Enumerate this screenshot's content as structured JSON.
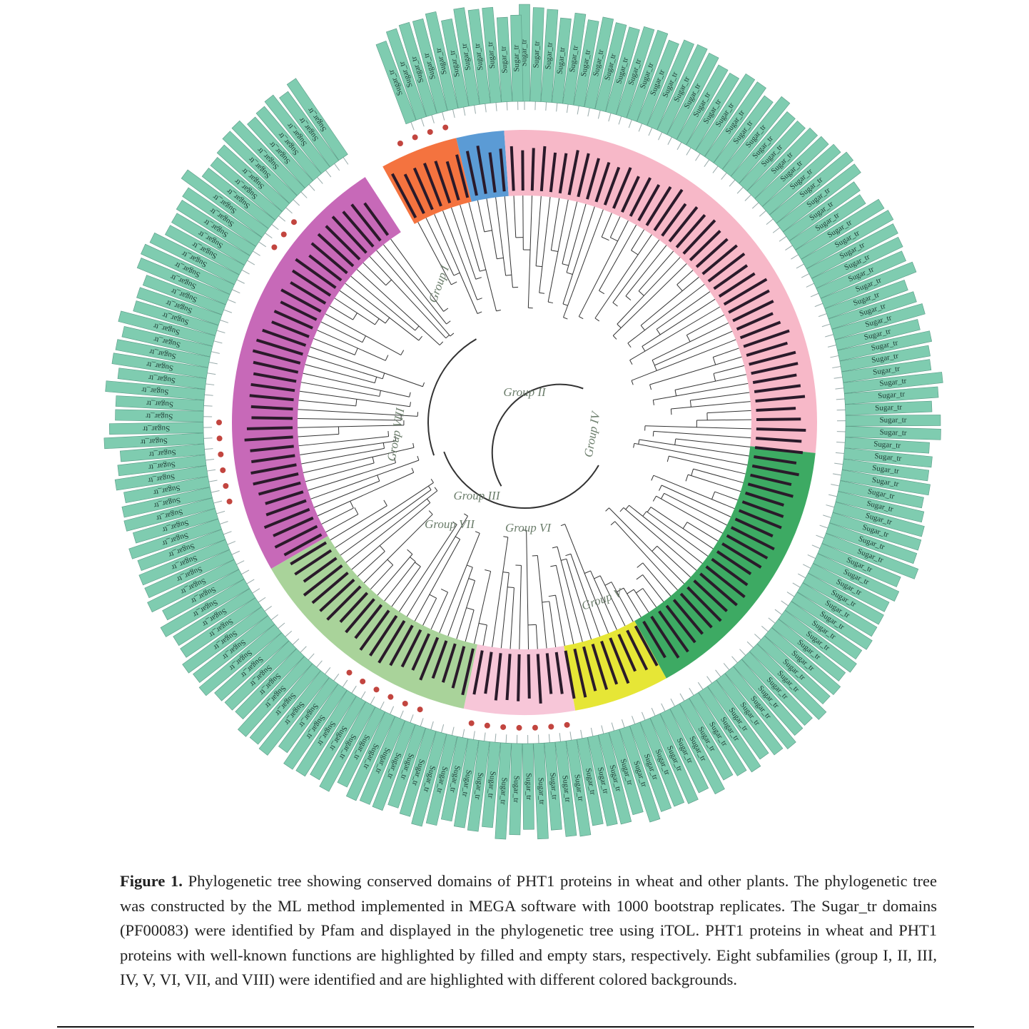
{
  "figure": {
    "domain_label": "Sugar_tr",
    "groups": [
      "Group I",
      "Group II",
      "Group III",
      "Group IV",
      "Group V",
      "Group VI",
      "Group VII",
      "Group VIII"
    ]
  },
  "caption": {
    "label": "Figure 1.",
    "text": "Phylogenetic tree showing conserved domains of PHT1 proteins in wheat and other plants. The phylogenetic tree was constructed by the ML method implemented in MEGA software with 1000 bootstrap replicates. The Sugar_tr domains (PF00083) were identified by Pfam and displayed in the phylogenetic tree using iTOL. PHT1 proteins in wheat and PHT1 proteins with well-known functions are highlighted by filled and empty stars, respectively. Eight subfamilies (group I, II, III, IV, V, VI, VII, and VIII) were identified and are highlighted with different colored backgrounds."
  }
}
